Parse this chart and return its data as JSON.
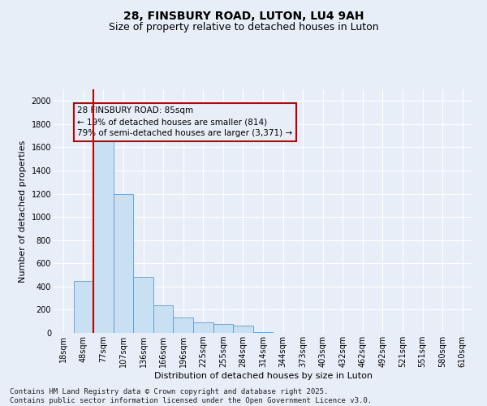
{
  "title1": "28, FINSBURY ROAD, LUTON, LU4 9AH",
  "title2": "Size of property relative to detached houses in Luton",
  "xlabel": "Distribution of detached houses by size in Luton",
  "ylabel": "Number of detached properties",
  "categories": [
    "18sqm",
    "48sqm",
    "77sqm",
    "107sqm",
    "136sqm",
    "166sqm",
    "196sqm",
    "225sqm",
    "255sqm",
    "284sqm",
    "314sqm",
    "344sqm",
    "373sqm",
    "403sqm",
    "432sqm",
    "462sqm",
    "492sqm",
    "521sqm",
    "551sqm",
    "580sqm",
    "610sqm"
  ],
  "values": [
    0,
    450,
    1650,
    1200,
    480,
    240,
    130,
    90,
    80,
    60,
    5,
    0,
    0,
    0,
    0,
    0,
    0,
    0,
    0,
    0,
    0
  ],
  "bar_color": "#c9dff2",
  "bar_edge_color": "#5b9bd5",
  "vline_color": "#c00000",
  "annotation_text": "28 FINSBURY ROAD: 85sqm\n← 19% of detached houses are smaller (814)\n79% of semi-detached houses are larger (3,371) →",
  "annotation_box_color": "#c00000",
  "ylim": [
    0,
    2100
  ],
  "yticks": [
    0,
    200,
    400,
    600,
    800,
    1000,
    1200,
    1400,
    1600,
    1800,
    2000
  ],
  "background_color": "#e8eef8",
  "grid_color": "#ffffff",
  "footer_line1": "Contains HM Land Registry data © Crown copyright and database right 2025.",
  "footer_line2": "Contains public sector information licensed under the Open Government Licence v3.0.",
  "title1_fontsize": 10,
  "title2_fontsize": 9,
  "label_fontsize": 8,
  "tick_fontsize": 7,
  "annotation_fontsize": 7.5,
  "footer_fontsize": 6.5
}
